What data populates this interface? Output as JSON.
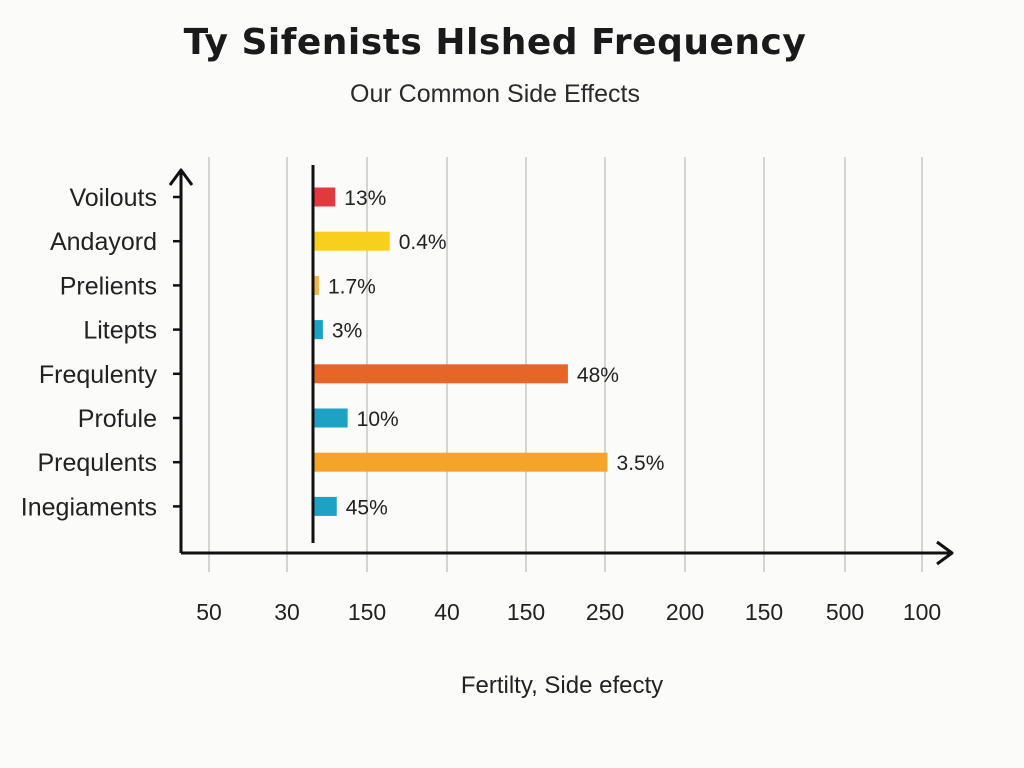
{
  "chart_data": {
    "type": "bar",
    "orientation": "horizontal",
    "title": "Ty Sifenists Hlshed Frequency",
    "subtitle": "Our Common Side Effects",
    "xlabel": "Fertilty, Side efecty",
    "ylabel": "",
    "grid": true,
    "x_ticks": [
      "50",
      "30",
      "150",
      "40",
      "150",
      "250",
      "200",
      "150",
      "500",
      "100"
    ],
    "categories": [
      "Voilouts",
      "Andayord",
      "Prelients",
      "Litepts",
      "Frequlenty",
      "Profule",
      "Prequlents",
      "Inegiaments"
    ],
    "values": [
      4.5,
      15.5,
      1.2,
      2.0,
      51.5,
      7.0,
      59.5,
      4.8
    ],
    "value_labels": [
      "13%",
      "0.4%",
      "1.7%",
      "3%",
      "48%",
      "10%",
      "3.5%",
      "45%"
    ],
    "colors": [
      "#e03a3e",
      "#f7cf1d",
      "#f2b64a",
      "#1ea2c4",
      "#e8652a",
      "#1ea2c4",
      "#f5a42a",
      "#1ea2c4"
    ],
    "xlim": [
      0,
      100
    ]
  }
}
